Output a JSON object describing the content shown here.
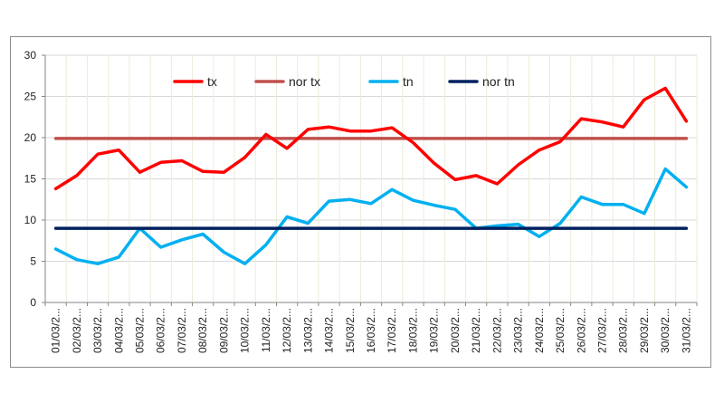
{
  "chart_data": {
    "type": "line",
    "title": "",
    "xlabel": "",
    "ylabel": "",
    "ylim": [
      0,
      30
    ],
    "yticks": [
      0,
      5,
      10,
      15,
      20,
      25,
      30
    ],
    "grid": true,
    "legend_position": "top",
    "categories": [
      "01/03/2...",
      "02/03/2...",
      "03/03/2...",
      "04/03/2...",
      "05/03/2...",
      "06/03/2...",
      "07/03/2...",
      "08/03/2...",
      "09/03/2...",
      "10/03/2...",
      "11/03/2...",
      "12/03/2...",
      "13/03/2...",
      "14/03/2...",
      "15/03/2...",
      "16/03/2...",
      "17/03/2...",
      "18/03/2...",
      "19/03/2...",
      "20/03/2...",
      "21/03/2...",
      "22/03/2...",
      "23/03/2...",
      "24/03/2...",
      "25/03/2...",
      "26/03/2...",
      "27/03/2...",
      "28/03/2...",
      "29/03/2...",
      "30/03/2...",
      "31/03/2..."
    ],
    "series": [
      {
        "name": "tx",
        "color": "#ff0000",
        "values": [
          13.8,
          15.4,
          18.0,
          18.5,
          15.8,
          17.0,
          17.2,
          15.9,
          15.8,
          17.6,
          20.4,
          18.7,
          21.0,
          21.3,
          20.8,
          20.8,
          21.2,
          19.4,
          16.9,
          14.9,
          15.4,
          14.4,
          16.7,
          18.5,
          19.5,
          22.3,
          21.9,
          21.3,
          24.6,
          26.0,
          22.0
        ]
      },
      {
        "name": "nor tx",
        "color": "#c0504d",
        "values": [
          19.9,
          19.9,
          19.9,
          19.9,
          19.9,
          19.9,
          19.9,
          19.9,
          19.9,
          19.9,
          19.9,
          19.9,
          19.9,
          19.9,
          19.9,
          19.9,
          19.9,
          19.9,
          19.9,
          19.9,
          19.9,
          19.9,
          19.9,
          19.9,
          19.9,
          19.9,
          19.9,
          19.9,
          19.9,
          19.9,
          19.9
        ]
      },
      {
        "name": "tn",
        "color": "#00b0f0",
        "values": [
          6.5,
          5.2,
          4.7,
          5.5,
          9.0,
          6.7,
          7.6,
          8.3,
          6.1,
          4.7,
          7.0,
          10.4,
          9.6,
          12.3,
          12.5,
          12.0,
          13.7,
          12.4,
          11.8,
          11.3,
          9.0,
          9.3,
          9.5,
          8.0,
          9.6,
          12.8,
          11.9,
          11.9,
          10.8,
          16.2,
          14.0
        ]
      },
      {
        "name": "nor tn",
        "color": "#002060",
        "values": [
          9.0,
          9.0,
          9.0,
          9.0,
          9.0,
          9.0,
          9.0,
          9.0,
          9.0,
          9.0,
          9.0,
          9.0,
          9.0,
          9.0,
          9.0,
          9.0,
          9.0,
          9.0,
          9.0,
          9.0,
          9.0,
          9.0,
          9.0,
          9.0,
          9.0,
          9.0,
          9.0,
          9.0,
          9.0,
          9.0,
          9.0
        ]
      }
    ]
  }
}
